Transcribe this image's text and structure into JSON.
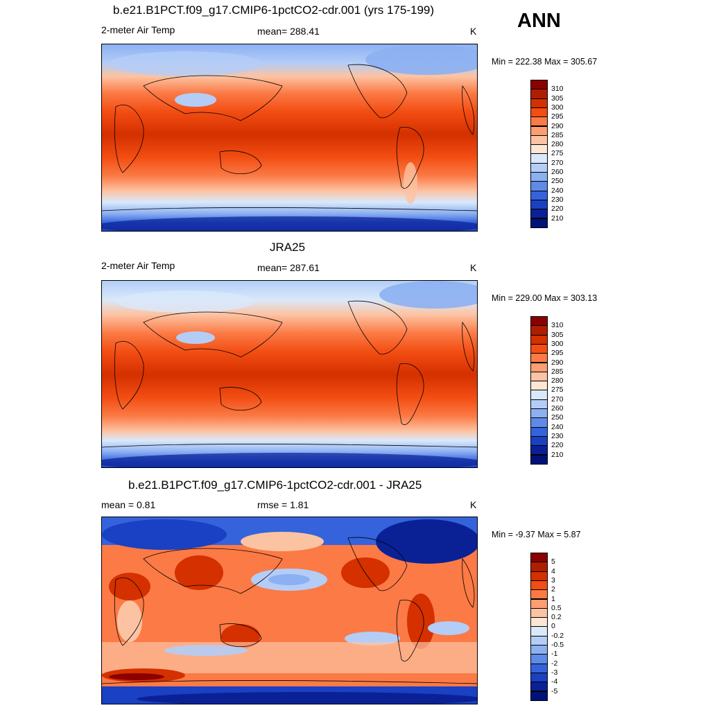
{
  "season": "ANN",
  "panels": [
    {
      "title": "b.e21.B1PCT.f09_g17.CMIP6-1pctCO2-cdr.001 (yrs 175-199)",
      "left_label": "2-meter Air Temp",
      "center_label": "mean= 288.41",
      "units": "K",
      "minmax": "Min = 222.38 Max = 305.67"
    },
    {
      "title": "JRA25",
      "left_label": "2-meter Air Temp",
      "center_label": "mean= 287.61",
      "units": "K",
      "minmax": "Min = 229.00 Max = 303.13"
    },
    {
      "title": "b.e21.B1PCT.f09_g17.CMIP6-1pctCO2-cdr.001 - JRA25",
      "left_label": "mean =   0.81",
      "center_label": "rmse =   1.81",
      "units": "K",
      "minmax": "Min =  -9.37 Max =   5.87"
    }
  ],
  "colorbars": {
    "temperature": {
      "labels": [
        "310",
        "305",
        "300",
        "295",
        "290",
        "285",
        "280",
        "275",
        "270",
        "260",
        "250",
        "240",
        "230",
        "220",
        "210"
      ],
      "colors": [
        "#8b0000",
        "#b01e00",
        "#d43000",
        "#f24d12",
        "#fb7a45",
        "#fc9d72",
        "#fcc3a3",
        "#fde6d3",
        "#d9e9fb",
        "#b4cdf7",
        "#8cb0f2",
        "#5f8ae8",
        "#3563dc",
        "#1a40c4",
        "#0a2196",
        "#00127a"
      ]
    },
    "difference": {
      "labels": [
        "5",
        "4",
        "3",
        "2",
        "1",
        "0.5",
        "0.2",
        "0",
        "-0.2",
        "-0.5",
        "-1",
        "-2",
        "-3",
        "-4",
        "-5"
      ],
      "colors": [
        "#8b0000",
        "#b01e00",
        "#d43000",
        "#f24d12",
        "#fb7a45",
        "#fc9d72",
        "#fcc3a3",
        "#fde6d3",
        "#d9e9fb",
        "#b4cdf7",
        "#8cb0f2",
        "#5f8ae8",
        "#3563dc",
        "#1a40c4",
        "#0a2196",
        "#00127a"
      ]
    }
  }
}
